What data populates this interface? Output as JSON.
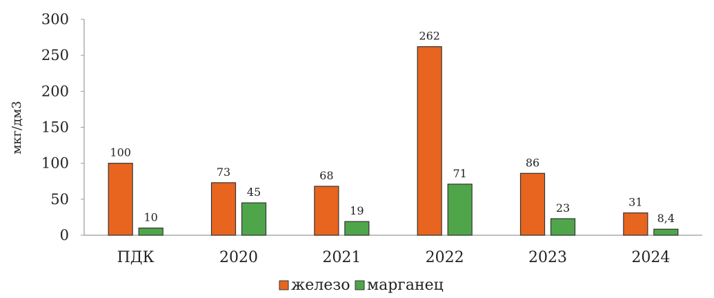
{
  "chart_data": {
    "type": "bar",
    "title": "",
    "xlabel": "",
    "ylabel": "мкг/дм3",
    "ylim": [
      0,
      300
    ],
    "yticks": [
      0,
      50,
      100,
      150,
      200,
      250,
      300
    ],
    "grid": false,
    "legend_position": "bottom",
    "categories": [
      "ПДК",
      "2020",
      "2021",
      "2022",
      "2023",
      "2024"
    ],
    "series": [
      {
        "name": "железо",
        "color": "#e8651f",
        "values": [
          100,
          73,
          68,
          262,
          86,
          31
        ],
        "labels": [
          "100",
          "73",
          "68",
          "262",
          "86",
          "31"
        ]
      },
      {
        "name": "марганец",
        "color": "#4fa64a",
        "values": [
          10,
          45,
          19,
          71,
          23,
          8.4
        ],
        "labels": [
          "10",
          "45",
          "19",
          "71",
          "23",
          "8,4"
        ]
      }
    ]
  }
}
